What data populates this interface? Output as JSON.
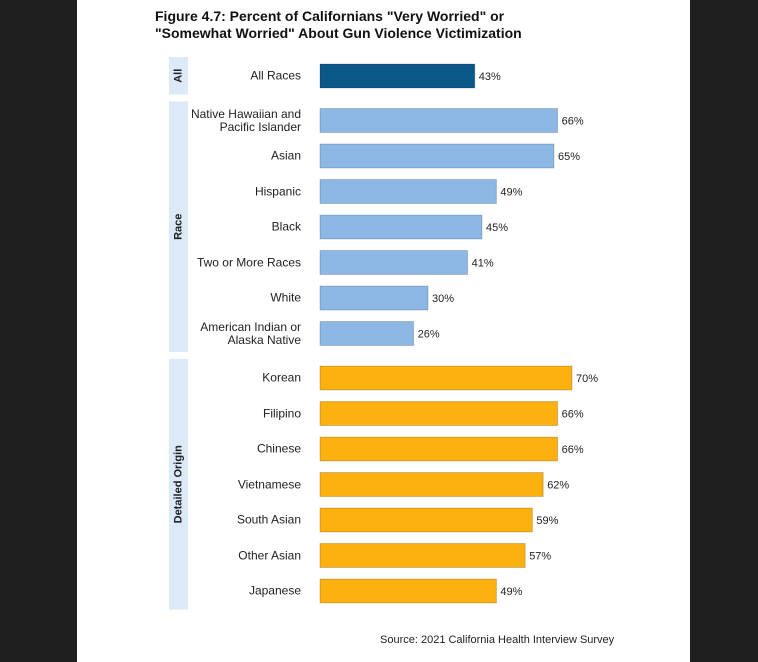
{
  "chart_data": {
    "type": "grouped-hbar",
    "title": "Figure 4.7: Percent of Californians \"Very Worried\" or \"Somewhat Worried\" About Gun Violence Victimization",
    "source": "Source: 2021 California Health Interview Survey",
    "groups": [
      {
        "name": "All",
        "color": "#0b5788",
        "categories": [
          "All Races"
        ],
        "values": [
          43
        ],
        "value_labels": [
          "43%"
        ]
      },
      {
        "name": "Race",
        "color": "#8db8e6",
        "categories": [
          "Native Hawaiian and Pacific Islander",
          "Asian",
          "Hispanic",
          "Black",
          "Two or More Races",
          "White",
          "American Indian or Alaska Native"
        ],
        "values": [
          66,
          65,
          49,
          45,
          41,
          30,
          26
        ],
        "value_labels": [
          "66%",
          "65%",
          "49%",
          "45%",
          "41%",
          "30%",
          "26%"
        ]
      },
      {
        "name": "Detailed Origin",
        "color": "#fcb10f",
        "categories": [
          "Korean",
          "Filipino",
          "Chinese",
          "Vietnamese",
          "South Asian",
          "Other Asian",
          "Japanese"
        ],
        "values": [
          70,
          66,
          66,
          62,
          59,
          57,
          49
        ],
        "value_labels": [
          "70%",
          "66%",
          "66%",
          "62%",
          "59%",
          "57%",
          "49%"
        ]
      }
    ]
  }
}
